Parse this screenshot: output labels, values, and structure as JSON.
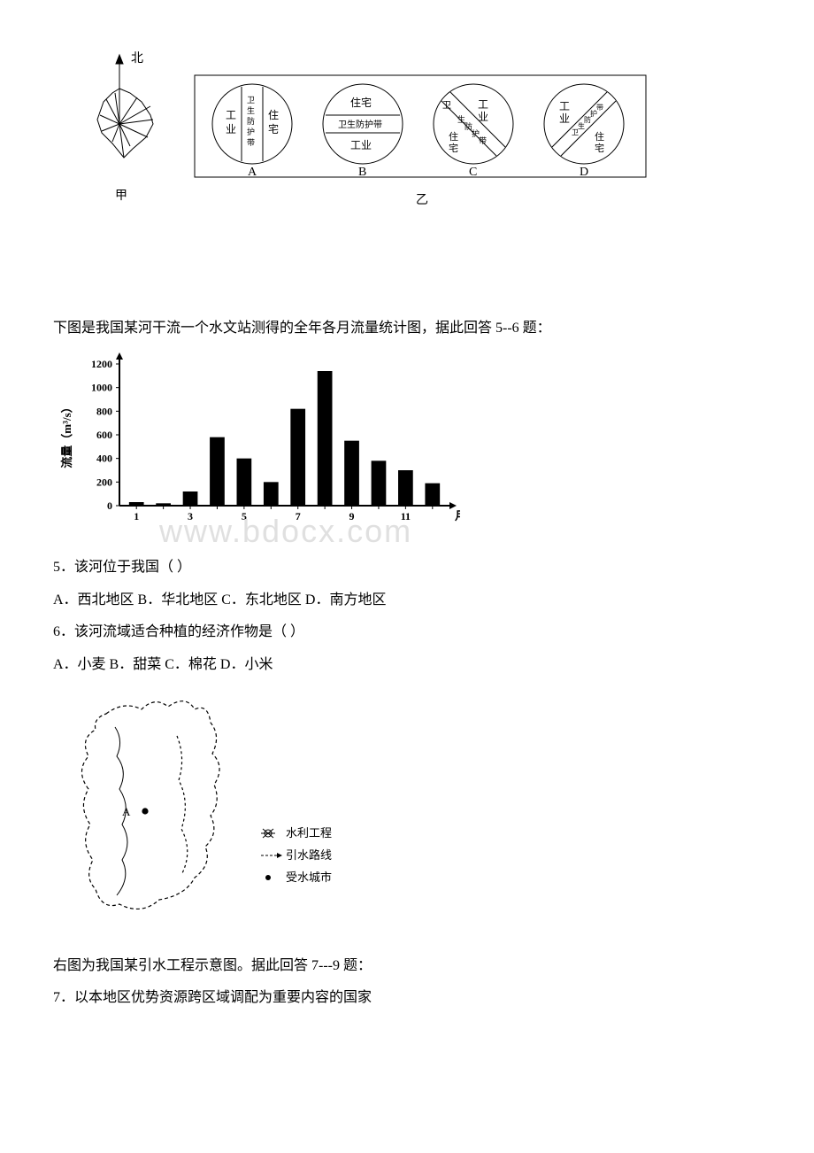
{
  "figure1": {
    "north_label": "北",
    "jia_label": "甲",
    "yi_label": "乙",
    "circles": {
      "A": {
        "left_v": "工业",
        "mid_v": "卫生防护带",
        "right_v": "住宅",
        "letter": "A"
      },
      "B": {
        "top_h": "住宅",
        "mid_h": "卫生防护带",
        "bot_h": "工业",
        "letter": "B"
      },
      "C": {
        "tl": "卫",
        "tr": "工业",
        "mid_diag": "生防护带",
        "bl": "住宅",
        "letter": "C"
      },
      "D": {
        "tl": "工业",
        "mid_diag": "卫生防护带",
        "br": "住宅",
        "letter": "D"
      }
    }
  },
  "intro_chart": "下图是我国某河干流一个水文站测得的全年各月流量统计图，据此回答 5--6 题：",
  "chart": {
    "type": "bar",
    "ylabel": "流量（m³/s）",
    "xlabel": "月",
    "yticks": [
      0,
      200,
      400,
      600,
      800,
      1000,
      1200
    ],
    "xticks": [
      1,
      3,
      5,
      7,
      9,
      11
    ],
    "categories": [
      1,
      2,
      3,
      4,
      5,
      6,
      7,
      8,
      9,
      10,
      11,
      12
    ],
    "values": [
      30,
      20,
      120,
      580,
      400,
      200,
      820,
      1140,
      550,
      380,
      300,
      190
    ],
    "bar_color": "#000000",
    "axis_color": "#000000",
    "background": "#ffffff",
    "bar_width": 0.55
  },
  "watermark": "www.bdocx.com",
  "q5": {
    "stem": "5．该河位于我国（ ）",
    "opts": "A．西北地区 B．华北地区 C．东北地区  D．南方地区"
  },
  "q6": {
    "stem": "6．该河流域适合种植的经济作物是（ ）",
    "opts": " A．小麦  B．甜菜   C．棉花  D．小米"
  },
  "map": {
    "label_A": "A",
    "legend": [
      {
        "sym": "hub",
        "text": "水利工程"
      },
      {
        "sym": "arrow",
        "text": "引水路线"
      },
      {
        "sym": "dot",
        "text": "受水城市"
      }
    ]
  },
  "intro_map": "右图为我国某引水工程示意图。据此回答 7---9 题：",
  "q7": {
    "stem": "7．以本地区优势资源跨区域调配为重要内容的国家"
  }
}
